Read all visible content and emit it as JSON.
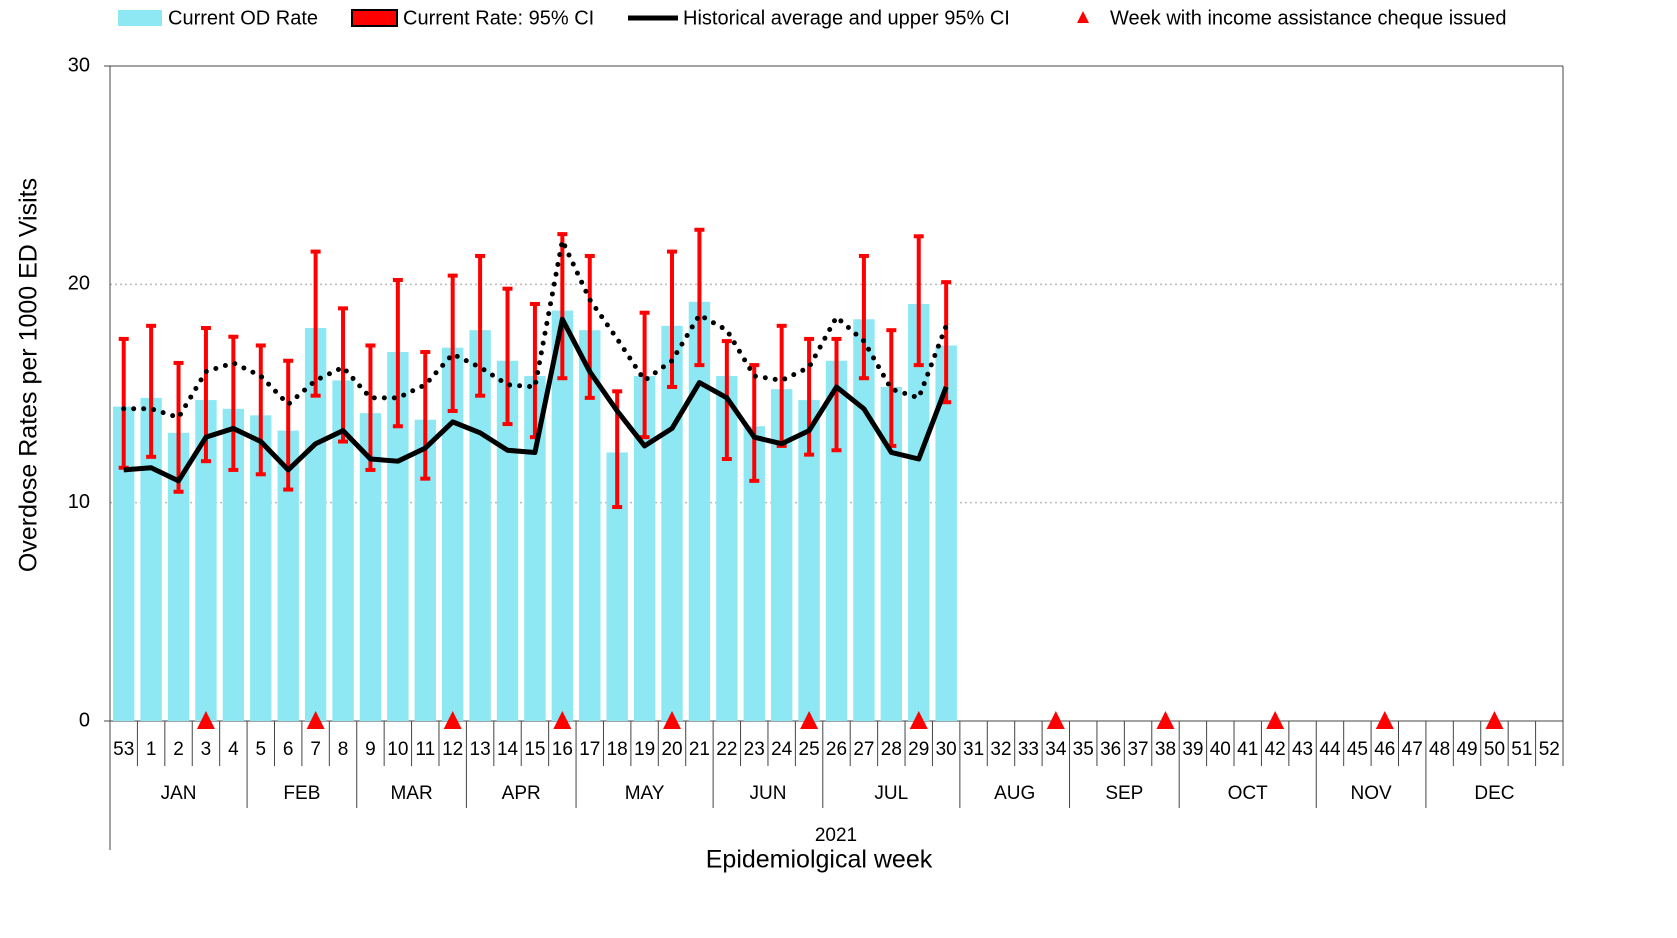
{
  "chart_data": {
    "type": "bar",
    "y_label": "Overdose Rates per 1000 ED Visits",
    "x_label": "Epidemiolgical week",
    "year": "2021",
    "ylim": [
      0,
      30
    ],
    "yticks": [
      0,
      10,
      20,
      30
    ],
    "grid": true,
    "legend": "top",
    "categories": [
      "53",
      "1",
      "2",
      "3",
      "4",
      "5",
      "6",
      "7",
      "8",
      "9",
      "10",
      "11",
      "12",
      "13",
      "14",
      "15",
      "16",
      "17",
      "18",
      "19",
      "20",
      "21",
      "22",
      "23",
      "24",
      "25",
      "26",
      "27",
      "28",
      "29",
      "30",
      "31",
      "32",
      "33",
      "34",
      "35",
      "36",
      "37",
      "38",
      "39",
      "40",
      "41",
      "42",
      "43",
      "44",
      "45",
      "46",
      "47",
      "48",
      "49",
      "50",
      "51",
      "52"
    ],
    "months": [
      "JAN",
      "JAN",
      "JAN",
      "JAN",
      "JAN",
      "FEB",
      "FEB",
      "FEB",
      "FEB",
      "MAR",
      "MAR",
      "MAR",
      "MAR",
      "APR",
      "APR",
      "APR",
      "APR",
      "MAY",
      "MAY",
      "MAY",
      "MAY",
      "MAY",
      "JUN",
      "JUN",
      "JUN",
      "JUN",
      "JUL",
      "JUL",
      "JUL",
      "JUL",
      "JUL",
      "AUG",
      "AUG",
      "AUG",
      "AUG",
      "SEP",
      "SEP",
      "SEP",
      "SEP",
      "OCT",
      "OCT",
      "OCT",
      "OCT",
      "OCT",
      "NOV",
      "NOV",
      "NOV",
      "NOV",
      "DEC",
      "DEC",
      "DEC",
      "DEC",
      "DEC"
    ],
    "series": [
      {
        "name": "Current OD Rate",
        "kind": "bar",
        "color": "#8ee8f4",
        "values": [
          14.4,
          14.8,
          13.2,
          14.7,
          14.3,
          14.0,
          13.3,
          18.0,
          15.6,
          14.1,
          16.9,
          13.8,
          17.1,
          17.9,
          16.5,
          15.8,
          18.8,
          17.9,
          12.3,
          15.8,
          18.1,
          19.2,
          15.8,
          13.5,
          15.2,
          14.7,
          16.5,
          18.4,
          15.3,
          19.1,
          17.2,
          null,
          null,
          null,
          null,
          null,
          null,
          null,
          null,
          null,
          null,
          null,
          null,
          null,
          null,
          null,
          null,
          null,
          null,
          null,
          null,
          null,
          null
        ]
      },
      {
        "name": "Current Rate: 95% CI",
        "kind": "errorbar",
        "color": "#ff0000",
        "low": [
          11.6,
          12.1,
          10.5,
          11.9,
          11.5,
          11.3,
          10.6,
          14.9,
          12.8,
          11.5,
          13.5,
          11.1,
          14.2,
          14.9,
          13.6,
          13.0,
          15.7,
          14.8,
          9.8,
          13.0,
          15.3,
          16.3,
          12.0,
          11.0,
          12.6,
          12.2,
          12.4,
          15.7,
          12.6,
          16.3,
          14.6,
          null,
          null,
          null,
          null,
          null,
          null,
          null,
          null,
          null,
          null,
          null,
          null,
          null,
          null,
          null,
          null,
          null,
          null,
          null,
          null,
          null,
          null
        ],
        "high": [
          17.5,
          18.1,
          16.4,
          18.0,
          17.6,
          17.2,
          16.5,
          21.5,
          18.9,
          17.2,
          20.2,
          16.9,
          20.4,
          21.3,
          19.8,
          19.1,
          22.3,
          21.3,
          15.1,
          18.7,
          21.5,
          22.5,
          17.4,
          16.3,
          18.1,
          17.5,
          17.5,
          21.3,
          17.9,
          22.2,
          20.1,
          null,
          null,
          null,
          null,
          null,
          null,
          null,
          null,
          null,
          null,
          null,
          null,
          null,
          null,
          null,
          null,
          null,
          null,
          null,
          null,
          null,
          null
        ]
      },
      {
        "name": "Historical average and upper 95% CI",
        "kind": "line",
        "color": "#000000",
        "values": [
          11.5,
          11.6,
          11.0,
          13.0,
          13.4,
          12.8,
          11.5,
          12.7,
          13.3,
          12.0,
          11.9,
          12.5,
          13.7,
          13.2,
          12.4,
          12.3,
          18.4,
          16.0,
          14.2,
          12.6,
          13.4,
          15.5,
          14.8,
          13.0,
          12.7,
          13.3,
          15.3,
          14.3,
          12.3,
          12.0,
          15.3,
          null,
          null,
          null,
          null,
          null,
          null,
          null,
          null,
          null,
          null,
          null,
          null,
          null,
          null,
          null,
          null,
          null,
          null,
          null,
          null,
          null,
          null
        ],
        "upper": [
          14.3,
          14.3,
          13.9,
          16.0,
          16.4,
          15.8,
          14.5,
          15.6,
          16.2,
          14.8,
          14.8,
          15.4,
          16.8,
          16.2,
          15.4,
          15.3,
          22.0,
          19.3,
          17.5,
          15.6,
          16.5,
          18.6,
          17.9,
          15.8,
          15.6,
          16.2,
          18.5,
          17.4,
          15.2,
          14.8,
          18.1,
          null,
          null,
          null,
          null,
          null,
          null,
          null,
          null,
          null,
          null,
          null,
          null,
          null,
          null,
          null,
          null,
          null,
          null,
          null,
          null,
          null,
          null
        ]
      },
      {
        "name": "Week with income assistance cheque issued",
        "kind": "marker",
        "color": "#ff0000",
        "values": [
          null,
          null,
          null,
          0,
          null,
          null,
          null,
          0,
          null,
          null,
          null,
          null,
          0,
          null,
          null,
          null,
          0,
          null,
          null,
          null,
          0,
          null,
          null,
          null,
          null,
          0,
          null,
          null,
          null,
          0,
          null,
          null,
          null,
          null,
          0,
          null,
          null,
          null,
          0,
          null,
          null,
          null,
          0,
          null,
          null,
          null,
          0,
          null,
          null,
          null,
          0,
          null,
          null
        ]
      }
    ]
  }
}
